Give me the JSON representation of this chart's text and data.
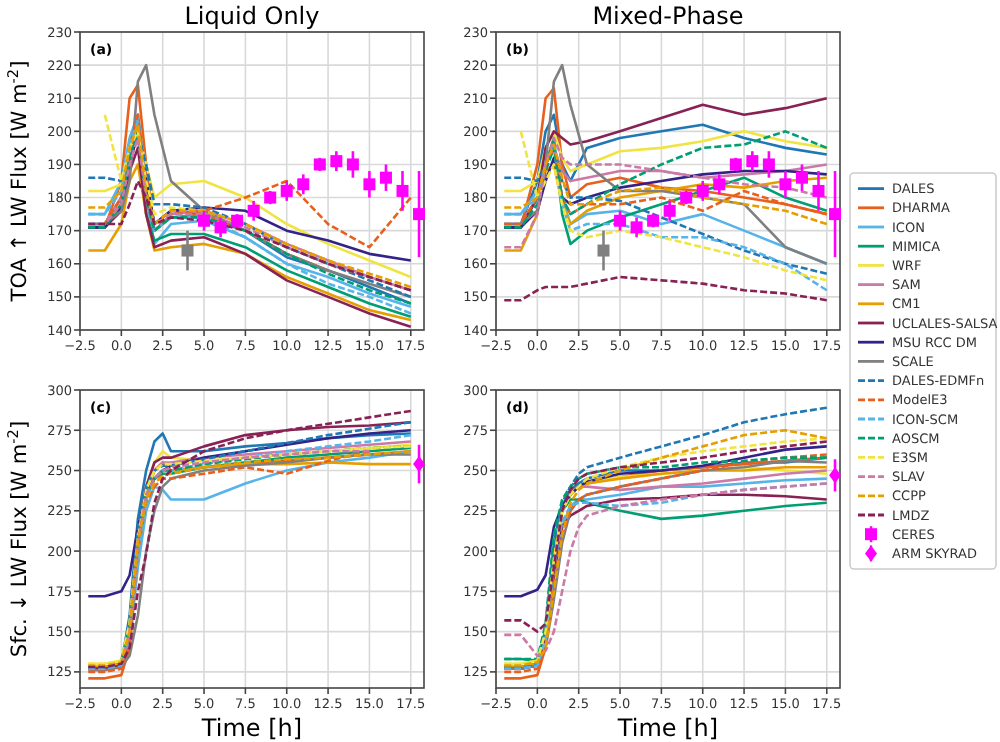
{
  "chart_data": [
    {
      "type": "line",
      "title": "Liquid Only",
      "ylabel": "TOA ↑ LW Flux [W m$^{-2}$]",
      "annotations": [
        "(a)"
      ],
      "grid": true,
      "legend": "right",
      "xlim": [
        -2.5,
        18.3
      ],
      "ylim": [
        140,
        230
      ],
      "xticks": [
        {
          "value": -2.5,
          "label": "−2.5"
        },
        {
          "value": 0,
          "label": "0.0"
        },
        {
          "value": 2.5,
          "label": "2.5"
        },
        {
          "value": 5,
          "label": "5.0"
        },
        {
          "value": 7.5,
          "label": "7.5"
        },
        {
          "value": 10,
          "label": "10.0"
        },
        {
          "value": 12.5,
          "label": "12.5"
        },
        {
          "value": 15,
          "label": "15.0"
        },
        {
          "value": 17.5,
          "label": "17.5"
        }
      ],
      "yticks": [
        140,
        150,
        160,
        170,
        180,
        190,
        200,
        210,
        220,
        230
      ],
      "x": [
        -2,
        -1,
        0,
        0.5,
        1,
        1.5,
        2,
        3,
        5,
        7.5,
        10,
        12.5,
        15,
        17.5
      ],
      "series": [
        {
          "name": "DALES",
          "color": "#1f77b4",
          "values": [
            172,
            172,
            180,
            195,
            205,
            185,
            172,
            176,
            175,
            170,
            162,
            158,
            153,
            148
          ]
        },
        {
          "name": "DHARMA",
          "color": "#e8601c",
          "values": [
            171,
            171,
            185,
            210,
            214,
            190,
            170,
            174,
            175,
            170,
            163,
            158,
            null,
            null
          ]
        },
        {
          "name": "ICON",
          "color": "#56b4e9",
          "values": [
            175,
            175,
            185,
            198,
            205,
            180,
            166,
            172,
            173,
            168,
            160,
            156,
            151,
            147
          ]
        },
        {
          "name": "MIMICA",
          "color": "#009e73",
          "values": [
            171,
            171,
            178,
            190,
            200,
            175,
            167,
            169,
            169,
            165,
            158,
            153,
            148,
            144
          ]
        },
        {
          "name": "WRF",
          "color": "#f0e442",
          "values": [
            182,
            182,
            184,
            195,
            200,
            190,
            180,
            184,
            185,
            180,
            172,
            166,
            161,
            156
          ]
        },
        {
          "name": "SAM",
          "color": "#cc79a7",
          "values": [
            172,
            172,
            180,
            192,
            198,
            180,
            170,
            175,
            176,
            172,
            166,
            161,
            156,
            152
          ]
        },
        {
          "name": "CM1",
          "color": "#e69f00",
          "values": [
            164,
            164,
            172,
            185,
            190,
            175,
            164,
            165,
            166,
            163,
            156,
            151,
            146,
            143
          ]
        },
        {
          "name": "UCLALES-SALSA",
          "color": "#882255",
          "values": [
            171,
            171,
            176,
            188,
            195,
            175,
            165,
            167,
            168,
            163,
            155,
            150,
            145,
            141
          ]
        },
        {
          "name": "MSU RCC DM",
          "color": "#332288",
          "values": [
            171,
            171,
            177,
            190,
            200,
            185,
            172,
            176,
            177,
            176,
            170,
            167,
            163,
            161
          ]
        },
        {
          "name": "SCALE",
          "color": "#808080",
          "values": [
            172,
            172,
            176,
            185,
            215,
            220,
            205,
            185,
            176,
            170,
            163,
            158,
            154,
            150
          ]
        },
        {
          "name": "DALES-EDMFn",
          "color": "#1f77b4",
          "line_style": "dashed",
          "values": [
            186,
            186,
            185,
            190,
            200,
            190,
            178,
            178,
            177,
            172,
            165,
            160,
            155,
            150
          ]
        },
        {
          "name": "ModelE3",
          "color": "#e8601c",
          "line_style": "dashed",
          "values": [
            null,
            172,
            180,
            195,
            205,
            180,
            170,
            175,
            176,
            180,
            185,
            172,
            165,
            180
          ]
        },
        {
          "name": "ICON-SCM",
          "color": "#56b4e9",
          "line_style": "dashed",
          "values": [
            175,
            175,
            182,
            196,
            203,
            180,
            170,
            174,
            174,
            168,
            160,
            154,
            150,
            145
          ]
        },
        {
          "name": "AOSCM",
          "color": "#009e73",
          "line_style": "dashed",
          "values": [
            171,
            171,
            178,
            192,
            200,
            180,
            170,
            174,
            174,
            170,
            163,
            157,
            152,
            148
          ]
        },
        {
          "name": "E3SM",
          "color": "#f0e442",
          "line_style": "dashed",
          "values": [
            null,
            205,
            185,
            195,
            200,
            185,
            175,
            177,
            176,
            172,
            165,
            160,
            156,
            152
          ]
        },
        {
          "name": "SLAV",
          "color": "#cc79a7",
          "line_style": "dashed",
          "values": [
            172,
            172,
            178,
            190,
            198,
            180,
            172,
            175,
            175,
            171,
            165,
            160,
            156,
            152
          ]
        },
        {
          "name": "CCPP",
          "color": "#e69f00",
          "line_style": "dashed",
          "values": [
            177,
            177,
            182,
            195,
            202,
            182,
            172,
            176,
            176,
            172,
            166,
            161,
            157,
            153
          ]
        },
        {
          "name": "LMDZ",
          "color": "#882255",
          "line_style": "dashed",
          "values": [
            172,
            172,
            172,
            178,
            185,
            180,
            172,
            174,
            173,
            170,
            165,
            160,
            156,
            152
          ]
        },
        {
          "type": "scatter",
          "marker": "square",
          "color": "#808080",
          "x": [
            4
          ],
          "values": [
            164
          ],
          "errors": [
            6
          ]
        },
        {
          "name": "CERES",
          "type": "scatter",
          "marker": "square",
          "color": "#ff00ff",
          "x": [
            5,
            6,
            7,
            8,
            9,
            10,
            11,
            12,
            13,
            14,
            15,
            16,
            17,
            18
          ],
          "values": [
            173,
            171,
            173,
            176,
            180,
            182,
            184,
            190,
            191,
            190,
            184,
            186,
            182,
            175
          ],
          "errors": [
            3,
            3,
            2,
            3,
            2,
            3,
            3,
            2,
            3,
            4,
            4,
            4,
            6,
            13
          ]
        }
      ]
    },
    {
      "type": "line",
      "title": "Mixed-Phase",
      "annotations": [
        "(b)"
      ],
      "grid": true,
      "xlim": [
        -2.5,
        18.3
      ],
      "ylim": [
        140,
        230
      ],
      "xticks": [
        {
          "value": -2.5,
          "label": "−2.5"
        },
        {
          "value": 0,
          "label": "0.0"
        },
        {
          "value": 2.5,
          "label": "2.5"
        },
        {
          "value": 5,
          "label": "5.0"
        },
        {
          "value": 7.5,
          "label": "7.5"
        },
        {
          "value": 10,
          "label": "10.0"
        },
        {
          "value": 12.5,
          "label": "12.5"
        },
        {
          "value": 15,
          "label": "15.0"
        },
        {
          "value": 17.5,
          "label": "17.5"
        }
      ],
      "yticks": [
        140,
        150,
        160,
        170,
        180,
        190,
        200,
        210,
        220,
        230
      ],
      "x": [
        -2,
        -1,
        0,
        0.5,
        1,
        1.5,
        2,
        3,
        5,
        7.5,
        10,
        12.5,
        15,
        17.5
      ],
      "series": [
        {
          "name": "DALES",
          "color": "#1f77b4",
          "values": [
            172,
            172,
            185,
            200,
            205,
            190,
            185,
            195,
            198,
            200,
            202,
            198,
            195,
            193
          ]
        },
        {
          "name": "DHARMA",
          "color": "#e8601c",
          "values": [
            171,
            171,
            190,
            210,
            213,
            190,
            180,
            184,
            186,
            183,
            182,
            180,
            178,
            175
          ]
        },
        {
          "name": "ICON",
          "color": "#56b4e9",
          "values": [
            175,
            175,
            182,
            190,
            195,
            180,
            172,
            175,
            176,
            172,
            175,
            170,
            165,
            160
          ]
        },
        {
          "name": "MIMICA",
          "color": "#009e73",
          "values": [
            171,
            171,
            180,
            190,
            198,
            175,
            166,
            170,
            174,
            178,
            182,
            186,
            180,
            176
          ]
        },
        {
          "name": "WRF",
          "color": "#f0e442",
          "values": [
            182,
            182,
            185,
            195,
            200,
            192,
            188,
            190,
            194,
            195,
            197,
            200,
            197,
            195
          ]
        },
        {
          "name": "SAM",
          "color": "#cc79a7",
          "values": [
            172,
            172,
            180,
            190,
            195,
            188,
            185,
            186,
            188,
            188,
            186,
            187,
            188,
            190
          ]
        },
        {
          "name": "CM1",
          "color": "#e69f00",
          "values": [
            164,
            164,
            175,
            188,
            190,
            178,
            172,
            176,
            180,
            182,
            184,
            183,
            185,
            186
          ]
        },
        {
          "name": "UCLALES-SALSA",
          "color": "#882255",
          "values": [
            171,
            171,
            180,
            195,
            200,
            198,
            196,
            197,
            200,
            204,
            208,
            205,
            207,
            210
          ]
        },
        {
          "name": "MSU RCC DM",
          "color": "#332288",
          "values": [
            171,
            171,
            176,
            185,
            192,
            180,
            178,
            180,
            183,
            185,
            187,
            188,
            188,
            187
          ]
        },
        {
          "name": "SCALE",
          "color": "#808080",
          "values": [
            172,
            172,
            176,
            190,
            215,
            220,
            208,
            190,
            182,
            182,
            180,
            178,
            165,
            160
          ]
        },
        {
          "name": "DALES-EDMFn",
          "color": "#1f77b4",
          "line_style": "dashed",
          "values": [
            186,
            186,
            185,
            190,
            195,
            185,
            180,
            180,
            179,
            174,
            169,
            164,
            160,
            157
          ]
        },
        {
          "name": "ModelE3",
          "color": "#e8601c",
          "line_style": "dashed",
          "values": [
            172,
            172,
            180,
            190,
            195,
            180,
            175,
            178,
            178,
            180,
            176,
            182,
            178,
            175
          ]
        },
        {
          "name": "ICON-SCM",
          "color": "#56b4e9",
          "line_style": "dashed",
          "values": [
            175,
            175,
            180,
            190,
            195,
            178,
            170,
            172,
            172,
            168,
            168,
            165,
            160,
            152
          ]
        },
        {
          "name": "AOSCM",
          "color": "#009e73",
          "line_style": "dashed",
          "values": [
            171,
            171,
            178,
            188,
            195,
            180,
            175,
            178,
            184,
            190,
            195,
            196,
            200,
            195
          ]
        },
        {
          "name": "E3SM",
          "color": "#f0e442",
          "line_style": "dashed",
          "values": [
            null,
            200,
            180,
            185,
            190,
            178,
            170,
            168,
            170,
            168,
            165,
            162,
            158,
            155
          ]
        },
        {
          "name": "SLAV",
          "color": "#cc79a7",
          "line_style": "dashed",
          "values": [
            165,
            165,
            175,
            190,
            198,
            192,
            190,
            190,
            190,
            188,
            186,
            184,
            183,
            180
          ]
        },
        {
          "name": "CCPP",
          "color": "#e69f00",
          "line_style": "dashed",
          "values": [
            177,
            177,
            180,
            190,
            196,
            186,
            178,
            178,
            182,
            183,
            180,
            178,
            176,
            172
          ]
        },
        {
          "name": "LMDZ",
          "color": "#882255",
          "line_style": "dashed",
          "values": [
            149,
            149,
            152,
            153,
            153,
            153,
            153,
            154,
            156,
            155,
            154,
            152,
            151,
            149
          ]
        },
        {
          "type": "scatter",
          "marker": "square",
          "color": "#808080",
          "x": [
            4
          ],
          "values": [
            164
          ],
          "errors": [
            6
          ]
        },
        {
          "name": "CERES",
          "type": "scatter",
          "marker": "square",
          "color": "#ff00ff",
          "x": [
            5,
            6,
            7,
            8,
            9,
            10,
            11,
            12,
            13,
            14,
            15,
            16,
            17,
            18
          ],
          "values": [
            173,
            171,
            173,
            176,
            180,
            182,
            184,
            190,
            191,
            190,
            184,
            186,
            182,
            175
          ],
          "errors": [
            3,
            3,
            2,
            3,
            2,
            3,
            3,
            2,
            3,
            4,
            4,
            4,
            6,
            13
          ]
        }
      ]
    },
    {
      "type": "line",
      "xlabel": "Time [h]",
      "ylabel": "Sfc. ↓ LW Flux [W m$^{-2}$]",
      "annotations": [
        "(c)"
      ],
      "grid": true,
      "xlim": [
        -2.5,
        18.3
      ],
      "ylim": [
        115,
        300
      ],
      "xticks": [
        {
          "value": -2.5,
          "label": "−2.5"
        },
        {
          "value": 0,
          "label": "0.0"
        },
        {
          "value": 2.5,
          "label": "2.5"
        },
        {
          "value": 5,
          "label": "5.0"
        },
        {
          "value": 7.5,
          "label": "7.5"
        },
        {
          "value": 10,
          "label": "10.0"
        },
        {
          "value": 12.5,
          "label": "12.5"
        },
        {
          "value": 15,
          "label": "15.0"
        },
        {
          "value": 17.5,
          "label": "17.5"
        }
      ],
      "yticks": [
        125,
        150,
        175,
        200,
        225,
        250,
        275,
        300
      ],
      "x": [
        -2,
        -1,
        0,
        0.5,
        1,
        1.5,
        2,
        2.5,
        3,
        5,
        7.5,
        10,
        12.5,
        15,
        17.5
      ],
      "series": [
        {
          "name": "DALES",
          "color": "#1f77b4",
          "values": [
            128,
            128,
            130,
            160,
            220,
            250,
            268,
            273,
            262,
            262,
            265,
            267,
            270,
            272,
            273
          ]
        },
        {
          "name": "DHARMA",
          "color": "#e8601c",
          "values": [
            121,
            121,
            123,
            140,
            195,
            235,
            250,
            255,
            250,
            252,
            255,
            256,
            258,
            260,
            262
          ]
        },
        {
          "name": "ICON",
          "color": "#56b4e9",
          "values": [
            127,
            127,
            129,
            145,
            190,
            225,
            240,
            238,
            232,
            232,
            242,
            250,
            255,
            258,
            262
          ]
        },
        {
          "name": "MIMICA",
          "color": "#009e73",
          "values": [
            null,
            null,
            130,
            150,
            205,
            235,
            245,
            248,
            248,
            252,
            255,
            258,
            260,
            262,
            264
          ]
        },
        {
          "name": "WRF",
          "color": "#f0e442",
          "values": [
            130,
            130,
            132,
            155,
            210,
            240,
            255,
            262,
            258,
            256,
            258,
            260,
            262,
            264,
            266
          ]
        },
        {
          "name": "SAM",
          "color": "#cc79a7",
          "values": [
            128,
            128,
            130,
            150,
            205,
            238,
            250,
            255,
            255,
            258,
            260,
            262,
            264,
            266,
            268
          ]
        },
        {
          "name": "CM1",
          "color": "#e69f00",
          "values": [
            128,
            128,
            130,
            148,
            200,
            232,
            245,
            250,
            250,
            252,
            254,
            254,
            255,
            254,
            254
          ]
        },
        {
          "name": "UCLALES-SALSA",
          "color": "#882255",
          "values": [
            127,
            127,
            129,
            150,
            210,
            240,
            255,
            258,
            258,
            265,
            272,
            275,
            277,
            278,
            280
          ]
        },
        {
          "name": "MSU RCC DM",
          "color": "#332288",
          "values": [
            172,
            172,
            175,
            185,
            215,
            235,
            245,
            250,
            253,
            258,
            262,
            266,
            270,
            273,
            275
          ]
        },
        {
          "name": "SCALE",
          "color": "#808080",
          "values": [
            126,
            126,
            128,
            135,
            160,
            200,
            225,
            240,
            245,
            250,
            253,
            255,
            258,
            260,
            260
          ]
        },
        {
          "name": "DALES-EDMFn",
          "color": "#1f77b4",
          "line_style": "dashed",
          "values": [
            128,
            128,
            130,
            155,
            215,
            240,
            250,
            253,
            253,
            257,
            262,
            267,
            272,
            276,
            280
          ]
        },
        {
          "name": "ModelE3",
          "color": "#e8601c",
          "line_style": "dashed",
          "values": [
            125,
            125,
            127,
            145,
            200,
            230,
            240,
            245,
            245,
            248,
            252,
            248,
            256,
            262,
            null
          ]
        },
        {
          "name": "ICON-SCM",
          "color": "#56b4e9",
          "line_style": "dashed",
          "values": [
            127,
            127,
            129,
            148,
            200,
            232,
            245,
            250,
            250,
            254,
            258,
            262,
            265,
            268,
            272
          ]
        },
        {
          "name": "AOSCM",
          "color": "#009e73",
          "line_style": "dashed",
          "values": [
            null,
            null,
            132,
            152,
            205,
            235,
            245,
            250,
            250,
            254,
            257,
            260,
            262,
            264,
            265
          ]
        },
        {
          "name": "E3SM",
          "color": "#f0e442",
          "line_style": "dashed",
          "values": [
            130,
            130,
            132,
            155,
            208,
            238,
            250,
            254,
            254,
            256,
            258,
            260,
            262,
            264,
            265
          ]
        },
        {
          "name": "SLAV",
          "color": "#cc79a7",
          "line_style": "dashed",
          "values": [
            null,
            null,
            130,
            150,
            205,
            235,
            245,
            250,
            252,
            255,
            258,
            260,
            262,
            262,
            null
          ]
        },
        {
          "name": "CCPP",
          "color": "#e69f00",
          "line_style": "dashed",
          "values": [
            129,
            129,
            131,
            150,
            205,
            232,
            242,
            247,
            248,
            252,
            255,
            257,
            258,
            260,
            262
          ]
        },
        {
          "name": "LMDZ",
          "color": "#882255",
          "line_style": "dashed",
          "values": [
            128,
            128,
            130,
            140,
            175,
            198,
            230,
            245,
            250,
            262,
            270,
            275,
            279,
            283,
            287
          ]
        },
        {
          "name": "ARM SKYRAD",
          "type": "scatter",
          "marker": "diamond",
          "color": "#ff00ff",
          "x": [
            18
          ],
          "values": [
            254
          ],
          "errors": [
            12
          ]
        }
      ]
    },
    {
      "type": "line",
      "xlabel": "Time [h]",
      "annotations": [
        "(d)"
      ],
      "grid": true,
      "xlim": [
        -2.5,
        18.3
      ],
      "ylim": [
        115,
        300
      ],
      "xticks": [
        {
          "value": -2.5,
          "label": "−2.5"
        },
        {
          "value": 0,
          "label": "0.0"
        },
        {
          "value": 2.5,
          "label": "2.5"
        },
        {
          "value": 5,
          "label": "5.0"
        },
        {
          "value": 7.5,
          "label": "7.5"
        },
        {
          "value": 10,
          "label": "10.0"
        },
        {
          "value": 12.5,
          "label": "12.5"
        },
        {
          "value": 15,
          "label": "15.0"
        },
        {
          "value": 17.5,
          "label": "17.5"
        }
      ],
      "yticks": [
        125,
        150,
        175,
        200,
        225,
        250,
        275,
        300
      ],
      "x": [
        -2,
        -1,
        0,
        0.5,
        1,
        1.5,
        2,
        2.5,
        3,
        5,
        7.5,
        10,
        12.5,
        15,
        17.5
      ],
      "series": [
        {
          "name": "DALES",
          "color": "#1f77b4",
          "values": [
            128,
            128,
            130,
            150,
            200,
            228,
            238,
            242,
            245,
            250,
            250,
            252,
            255,
            255,
            258
          ]
        },
        {
          "name": "DHARMA",
          "color": "#e8601c",
          "values": [
            121,
            121,
            123,
            140,
            190,
            225,
            235,
            240,
            242,
            246,
            250,
            252,
            254,
            256,
            258
          ]
        },
        {
          "name": "ICON",
          "color": "#56b4e9",
          "values": [
            127,
            127,
            129,
            145,
            185,
            215,
            228,
            232,
            232,
            235,
            240,
            240,
            242,
            244,
            245
          ]
        },
        {
          "name": "MIMICA",
          "color": "#009e73",
          "values": [
            133,
            133,
            132,
            150,
            200,
            225,
            232,
            232,
            230,
            225,
            220,
            222,
            225,
            228,
            230
          ]
        },
        {
          "name": "WRF",
          "color": "#f0e442",
          "values": [
            130,
            130,
            132,
            150,
            195,
            225,
            235,
            240,
            243,
            246,
            248,
            250,
            252,
            250,
            248
          ]
        },
        {
          "name": "SAM",
          "color": "#cc79a7",
          "values": [
            128,
            128,
            130,
            148,
            195,
            225,
            235,
            240,
            240,
            238,
            240,
            242,
            245,
            248,
            250
          ]
        },
        {
          "name": "CM1",
          "color": "#e69f00",
          "values": [
            128,
            128,
            130,
            148,
            195,
            225,
            235,
            240,
            242,
            245,
            248,
            250,
            250,
            252,
            252
          ]
        },
        {
          "name": "UCLALES-SALSA",
          "color": "#882255",
          "values": [
            127,
            127,
            129,
            145,
            185,
            215,
            222,
            225,
            228,
            232,
            233,
            235,
            235,
            234,
            232
          ]
        },
        {
          "name": "MSU RCC DM",
          "color": "#332288",
          "values": [
            172,
            172,
            176,
            185,
            215,
            228,
            235,
            240,
            243,
            248,
            250,
            253,
            258,
            263,
            265
          ]
        },
        {
          "name": "SCALE",
          "color": "#808080",
          "values": [
            127,
            127,
            129,
            140,
            170,
            205,
            225,
            232,
            235,
            240,
            245,
            250,
            252,
            256,
            255
          ]
        },
        {
          "name": "DALES-EDMFn",
          "color": "#1f77b4",
          "line_style": "dashed",
          "values": [
            128,
            128,
            130,
            152,
            205,
            230,
            240,
            248,
            252,
            258,
            265,
            272,
            280,
            285,
            289
          ]
        },
        {
          "name": "ModelE3",
          "color": "#e8601c",
          "line_style": "dashed",
          "values": [
            125,
            125,
            127,
            140,
            180,
            210,
            225,
            232,
            235,
            240,
            245,
            250,
            255,
            258,
            260
          ]
        },
        {
          "name": "ICON-SCM",
          "color": "#56b4e9",
          "line_style": "dashed",
          "values": [
            127,
            127,
            129,
            145,
            190,
            218,
            228,
            230,
            230,
            228,
            230,
            235,
            238,
            240,
            242
          ]
        },
        {
          "name": "AOSCM",
          "color": "#009e73",
          "line_style": "dashed",
          "values": [
            133,
            133,
            133,
            155,
            210,
            232,
            240,
            245,
            248,
            252,
            252,
            255,
            256,
            258,
            258
          ]
        },
        {
          "name": "E3SM",
          "color": "#f0e442",
          "line_style": "dashed",
          "values": [
            130,
            130,
            132,
            150,
            195,
            225,
            235,
            240,
            245,
            252,
            258,
            262,
            265,
            268,
            270
          ]
        },
        {
          "name": "SLAV",
          "color": "#cc79a7",
          "line_style": "dashed",
          "values": [
            148,
            148,
            135,
            138,
            150,
            175,
            200,
            215,
            222,
            228,
            232,
            235,
            238,
            240,
            242
          ]
        },
        {
          "name": "CCPP",
          "color": "#e69f00",
          "line_style": "dashed",
          "values": [
            129,
            129,
            131,
            140,
            175,
            210,
            230,
            238,
            242,
            250,
            258,
            265,
            272,
            275,
            270
          ]
        },
        {
          "name": "LMDZ",
          "color": "#882255",
          "line_style": "dashed",
          "values": [
            157,
            157,
            150,
            155,
            190,
            225,
            238,
            245,
            248,
            252,
            255,
            258,
            262,
            265,
            268
          ]
        },
        {
          "name": "ARM SKYRAD",
          "type": "scatter",
          "marker": "diamond",
          "color": "#ff00ff",
          "x": [
            18
          ],
          "values": [
            247
          ],
          "errors": [
            10
          ]
        }
      ]
    }
  ]
}
